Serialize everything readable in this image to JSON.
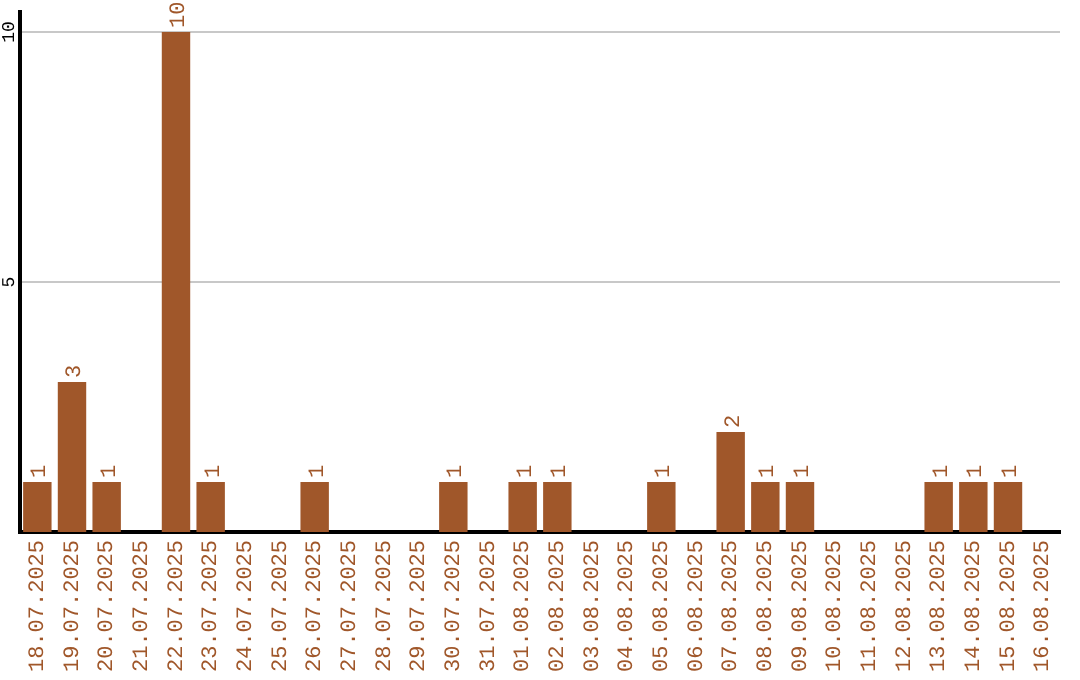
{
  "chart_data": {
    "type": "bar",
    "categories": [
      "18.07.2025",
      "19.07.2025",
      "20.07.2025",
      "21.07.2025",
      "22.07.2025",
      "23.07.2025",
      "24.07.2025",
      "25.07.2025",
      "26.07.2025",
      "27.07.2025",
      "28.07.2025",
      "29.07.2025",
      "30.07.2025",
      "31.07.2025",
      "01.08.2025",
      "02.08.2025",
      "03.08.2025",
      "04.08.2025",
      "05.08.2025",
      "06.08.2025",
      "07.08.2025",
      "08.08.2025",
      "09.08.2025",
      "10.08.2025",
      "11.08.2025",
      "12.08.2025",
      "13.08.2025",
      "14.08.2025",
      "15.08.2025",
      "16.08.2025"
    ],
    "values": [
      1,
      3,
      1,
      null,
      10,
      1,
      null,
      null,
      1,
      null,
      null,
      null,
      1,
      null,
      1,
      1,
      null,
      null,
      1,
      null,
      2,
      1,
      1,
      null,
      null,
      null,
      1,
      1,
      1,
      null
    ],
    "color": "#a0572a",
    "ylim": [
      0,
      10.4
    ],
    "yticks": [
      5,
      10
    ],
    "grid": "y",
    "data_labels": true,
    "legend": false
  }
}
